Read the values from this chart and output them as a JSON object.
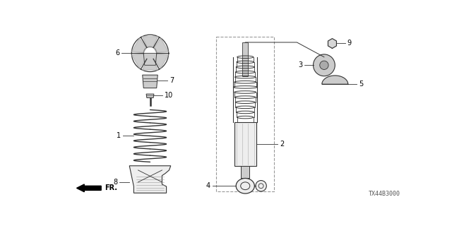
{
  "bg_color": "#ffffff",
  "diagram_code": "TX44B3000",
  "dark": "#333333",
  "mid": "#888888",
  "light": "#cccccc",
  "lighter": "#eeeeee"
}
